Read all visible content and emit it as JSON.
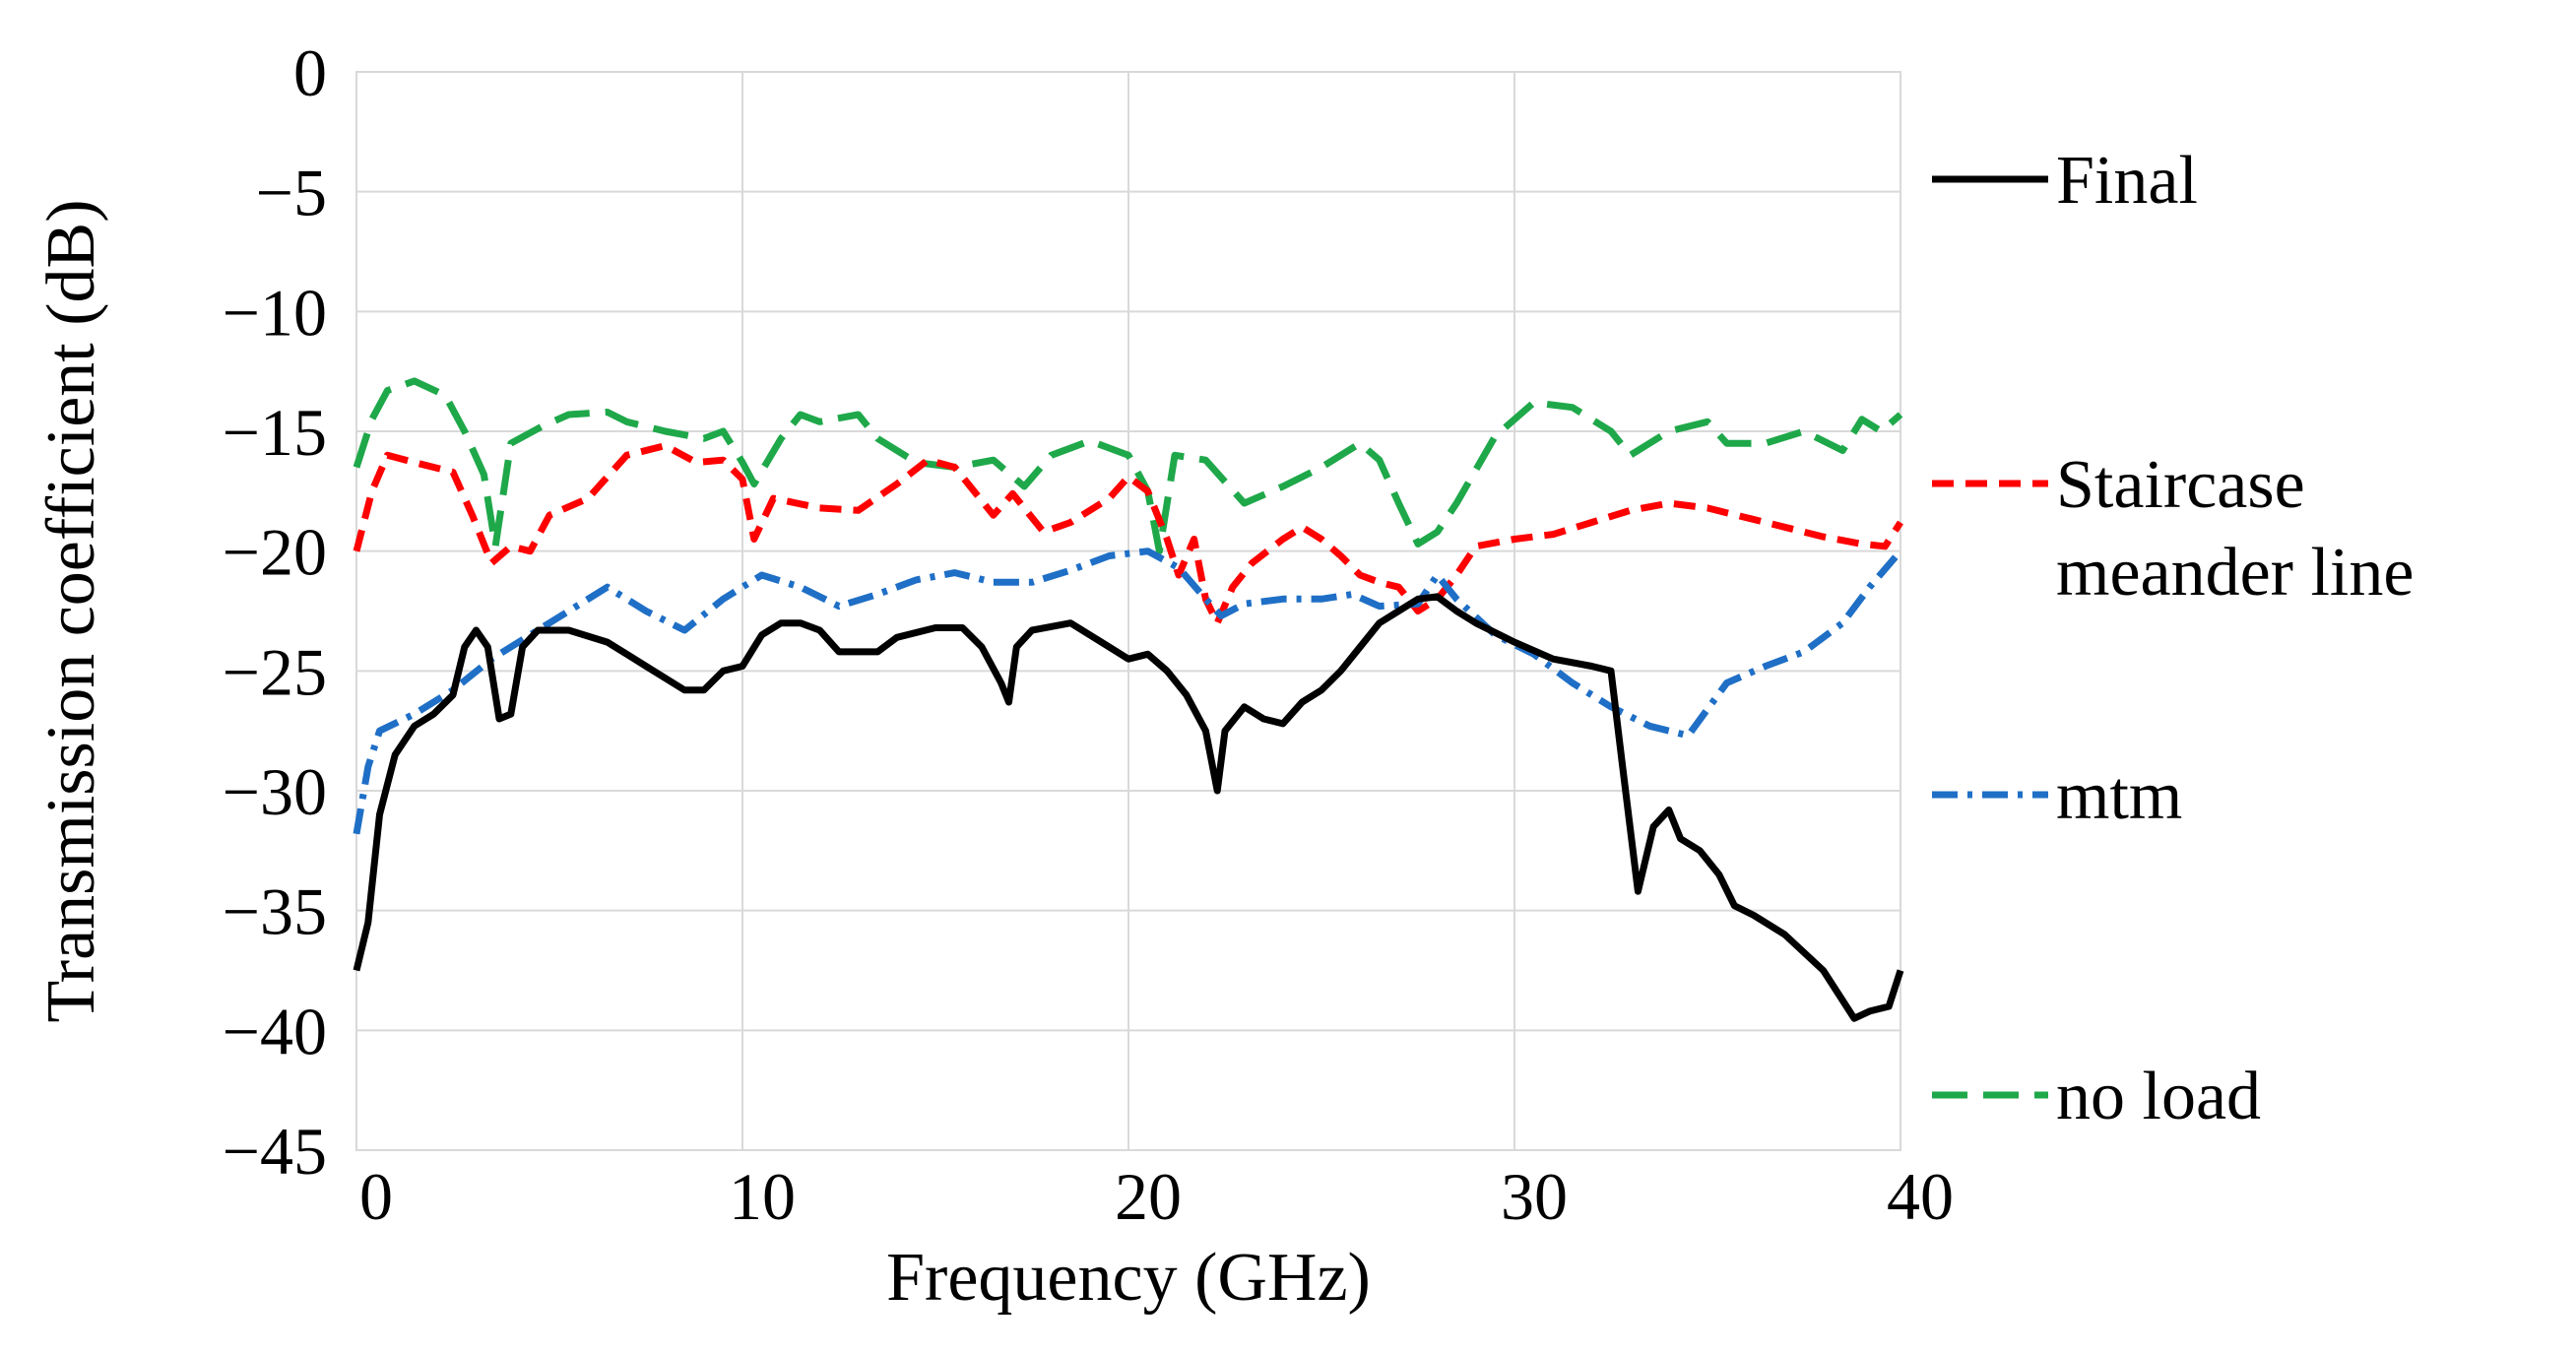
{
  "chart_data": {
    "type": "line",
    "title": "",
    "xlabel": "Frequency (GHz)",
    "ylabel": "Transmission coefficient (dB)",
    "xlim": [
      0,
      40
    ],
    "ylim": [
      -45,
      0
    ],
    "xticks": [
      "0",
      "10",
      "20",
      "30",
      "40"
    ],
    "yticks": [
      "0",
      "-5",
      "-10",
      "-15",
      "-20",
      "-25",
      "-30",
      "-35",
      "-40",
      "-45"
    ],
    "grid": true,
    "legend_position": "right",
    "series": [
      {
        "name": "Final",
        "color": "#000000",
        "dash": "solid",
        "legend_lines": [
          "Final"
        ],
        "points": [
          [
            0,
            -37.5
          ],
          [
            0.3,
            -35.5
          ],
          [
            0.6,
            -31
          ],
          [
            1,
            -28.5
          ],
          [
            1.5,
            -27.3
          ],
          [
            2,
            -26.8
          ],
          [
            2.5,
            -26
          ],
          [
            2.8,
            -24
          ],
          [
            3.1,
            -23.3
          ],
          [
            3.4,
            -24
          ],
          [
            3.7,
            -27
          ],
          [
            4,
            -26.8
          ],
          [
            4.3,
            -24
          ],
          [
            4.7,
            -23.3
          ],
          [
            5.5,
            -23.3
          ],
          [
            6.5,
            -23.8
          ],
          [
            7.5,
            -24.8
          ],
          [
            8.5,
            -25.8
          ],
          [
            9,
            -25.8
          ],
          [
            9.5,
            -25
          ],
          [
            10,
            -24.8
          ],
          [
            10.5,
            -23.5
          ],
          [
            11,
            -23
          ],
          [
            11.5,
            -23
          ],
          [
            12,
            -23.3
          ],
          [
            12.5,
            -24.2
          ],
          [
            13.5,
            -24.2
          ],
          [
            14,
            -23.6
          ],
          [
            15,
            -23.2
          ],
          [
            15.7,
            -23.2
          ],
          [
            16.2,
            -24
          ],
          [
            16.7,
            -25.5
          ],
          [
            16.9,
            -26.3
          ],
          [
            17.1,
            -24
          ],
          [
            17.5,
            -23.3
          ],
          [
            18.5,
            -23
          ],
          [
            19.5,
            -24
          ],
          [
            20,
            -24.5
          ],
          [
            20.5,
            -24.3
          ],
          [
            21,
            -25
          ],
          [
            21.5,
            -26
          ],
          [
            22,
            -27.5
          ],
          [
            22.3,
            -30
          ],
          [
            22.5,
            -27.5
          ],
          [
            23,
            -26.5
          ],
          [
            23.5,
            -27
          ],
          [
            24,
            -27.2
          ],
          [
            24.5,
            -26.3
          ],
          [
            25,
            -25.8
          ],
          [
            25.5,
            -25
          ],
          [
            26,
            -24
          ],
          [
            26.5,
            -23
          ],
          [
            27,
            -22.5
          ],
          [
            27.5,
            -22
          ],
          [
            28,
            -21.9
          ],
          [
            28.5,
            -22.5
          ],
          [
            29,
            -23
          ],
          [
            30,
            -23.8
          ],
          [
            31,
            -24.5
          ],
          [
            32,
            -24.8
          ],
          [
            32.5,
            -25
          ],
          [
            32.8,
            -29
          ],
          [
            33.2,
            -34.2
          ],
          [
            33.6,
            -31.5
          ],
          [
            34,
            -30.8
          ],
          [
            34.3,
            -32
          ],
          [
            34.8,
            -32.5
          ],
          [
            35.3,
            -33.5
          ],
          [
            35.7,
            -34.8
          ],
          [
            36.2,
            -35.2
          ],
          [
            37,
            -36
          ],
          [
            38,
            -37.5
          ],
          [
            38.4,
            -38.5
          ],
          [
            38.8,
            -39.5
          ],
          [
            39.2,
            -39.2
          ],
          [
            39.7,
            -39
          ],
          [
            40,
            -37.5
          ]
        ]
      },
      {
        "name": "Staircase meander line",
        "color": "#ff0000",
        "dash": "22,12",
        "legend_lines": [
          "Staircase",
          "meander line"
        ],
        "points": [
          [
            0,
            -20
          ],
          [
            0.4,
            -17.5
          ],
          [
            0.8,
            -16
          ],
          [
            1.5,
            -16.3
          ],
          [
            2.5,
            -16.7
          ],
          [
            3,
            -18.5
          ],
          [
            3.5,
            -20.5
          ],
          [
            4,
            -19.8
          ],
          [
            4.5,
            -20
          ],
          [
            5,
            -18.5
          ],
          [
            6,
            -17.8
          ],
          [
            7,
            -16
          ],
          [
            8,
            -15.6
          ],
          [
            8.8,
            -16.3
          ],
          [
            9.5,
            -16.2
          ],
          [
            10,
            -17
          ],
          [
            10.3,
            -19.5
          ],
          [
            10.8,
            -17.8
          ],
          [
            12,
            -18.2
          ],
          [
            13,
            -18.3
          ],
          [
            14,
            -17.2
          ],
          [
            14.8,
            -16.2
          ],
          [
            15.5,
            -16.5
          ],
          [
            16.5,
            -18.5
          ],
          [
            17,
            -17.6
          ],
          [
            17.8,
            -19.2
          ],
          [
            18.5,
            -18.8
          ],
          [
            19.5,
            -17.8
          ],
          [
            20,
            -16.9
          ],
          [
            20.5,
            -17.5
          ],
          [
            21,
            -19.5
          ],
          [
            21.3,
            -21
          ],
          [
            21.7,
            -19.5
          ],
          [
            22,
            -22
          ],
          [
            22.3,
            -23
          ],
          [
            22.7,
            -21.5
          ],
          [
            23.2,
            -20.5
          ],
          [
            24,
            -19.5
          ],
          [
            24.5,
            -19
          ],
          [
            25,
            -19.5
          ],
          [
            25.5,
            -20.2
          ],
          [
            26,
            -21
          ],
          [
            26.5,
            -21.3
          ],
          [
            27,
            -21.5
          ],
          [
            27.5,
            -22.5
          ],
          [
            28,
            -22
          ],
          [
            28.5,
            -21
          ],
          [
            29,
            -19.8
          ],
          [
            30,
            -19.5
          ],
          [
            31,
            -19.3
          ],
          [
            32,
            -18.8
          ],
          [
            33,
            -18.3
          ],
          [
            34,
            -18
          ],
          [
            35,
            -18.2
          ],
          [
            36,
            -18.6
          ],
          [
            37,
            -19
          ],
          [
            38,
            -19.4
          ],
          [
            39,
            -19.7
          ],
          [
            39.6,
            -19.8
          ],
          [
            40,
            -18.8
          ]
        ]
      },
      {
        "name": "mtm",
        "color": "#1f6fc6",
        "dash": "26,10,5,10",
        "legend_lines": [
          "mtm"
        ],
        "points": [
          [
            0,
            -31.8
          ],
          [
            0.3,
            -29
          ],
          [
            0.6,
            -27.5
          ],
          [
            1.5,
            -26.8
          ],
          [
            2.5,
            -25.8
          ],
          [
            3.5,
            -24.5
          ],
          [
            4.5,
            -23.5
          ],
          [
            5.5,
            -22.5
          ],
          [
            6.5,
            -21.5
          ],
          [
            7.5,
            -22.5
          ],
          [
            8.5,
            -23.3
          ],
          [
            9.5,
            -22
          ],
          [
            10.5,
            -21
          ],
          [
            11.5,
            -21.5
          ],
          [
            12.5,
            -22.3
          ],
          [
            13.5,
            -21.8
          ],
          [
            14.5,
            -21.2
          ],
          [
            15.5,
            -20.9
          ],
          [
            16.5,
            -21.3
          ],
          [
            17.5,
            -21.3
          ],
          [
            18.5,
            -20.8
          ],
          [
            19.5,
            -20.2
          ],
          [
            20.5,
            -20
          ],
          [
            21.3,
            -20.7
          ],
          [
            22,
            -22
          ],
          [
            22.4,
            -22.7
          ],
          [
            23,
            -22.2
          ],
          [
            24,
            -22
          ],
          [
            25,
            -22
          ],
          [
            25.8,
            -21.8
          ],
          [
            26.5,
            -22.3
          ],
          [
            27.5,
            -22.2
          ],
          [
            28,
            -21
          ],
          [
            28.5,
            -22
          ],
          [
            29.5,
            -23.5
          ],
          [
            30.5,
            -24.3
          ],
          [
            31.5,
            -25.5
          ],
          [
            32.5,
            -26.5
          ],
          [
            33.5,
            -27.3
          ],
          [
            34.5,
            -27.7
          ],
          [
            35.5,
            -25.5
          ],
          [
            36.5,
            -24.8
          ],
          [
            37.5,
            -24.2
          ],
          [
            38.5,
            -23
          ],
          [
            39.2,
            -21.5
          ],
          [
            40,
            -20
          ]
        ]
      },
      {
        "name": "no load",
        "color": "#1fa84a",
        "dash": "36,16",
        "legend_lines": [
          "no load"
        ],
        "points": [
          [
            0,
            -16.5
          ],
          [
            0.4,
            -14.5
          ],
          [
            0.8,
            -13.3
          ],
          [
            1.5,
            -12.9
          ],
          [
            2.3,
            -13.5
          ],
          [
            2.8,
            -15
          ],
          [
            3.3,
            -16.8
          ],
          [
            3.6,
            -19.8
          ],
          [
            4,
            -15.5
          ],
          [
            4.8,
            -14.8
          ],
          [
            5.5,
            -14.3
          ],
          [
            6.5,
            -14.2
          ],
          [
            7,
            -14.6
          ],
          [
            8,
            -15
          ],
          [
            9,
            -15.3
          ],
          [
            9.5,
            -15
          ],
          [
            10,
            -16.3
          ],
          [
            10.3,
            -17.2
          ],
          [
            11,
            -15.3
          ],
          [
            11.5,
            -14.3
          ],
          [
            12,
            -14.6
          ],
          [
            13,
            -14.3
          ],
          [
            13.5,
            -15.3
          ],
          [
            14.5,
            -16.3
          ],
          [
            15.5,
            -16.5
          ],
          [
            16.5,
            -16.2
          ],
          [
            17.3,
            -17.3
          ],
          [
            18,
            -16
          ],
          [
            19,
            -15.4
          ],
          [
            20,
            -16
          ],
          [
            20.5,
            -17.5
          ],
          [
            20.8,
            -20
          ],
          [
            21.2,
            -16
          ],
          [
            22,
            -16.2
          ],
          [
            23,
            -18
          ],
          [
            24,
            -17.3
          ],
          [
            25,
            -16.5
          ],
          [
            26,
            -15.5
          ],
          [
            26.5,
            -16.2
          ],
          [
            27,
            -18
          ],
          [
            27.5,
            -19.7
          ],
          [
            28,
            -19.2
          ],
          [
            28.5,
            -18
          ],
          [
            29.5,
            -15.2
          ],
          [
            30.5,
            -13.8
          ],
          [
            31.5,
            -14
          ],
          [
            32.5,
            -15
          ],
          [
            33,
            -16
          ],
          [
            34,
            -15
          ],
          [
            35,
            -14.6
          ],
          [
            35.5,
            -15.5
          ],
          [
            36.5,
            -15.5
          ],
          [
            37.5,
            -15
          ],
          [
            38.5,
            -15.8
          ],
          [
            39,
            -14.5
          ],
          [
            39.5,
            -15
          ],
          [
            40,
            -14.3
          ]
        ]
      }
    ]
  }
}
